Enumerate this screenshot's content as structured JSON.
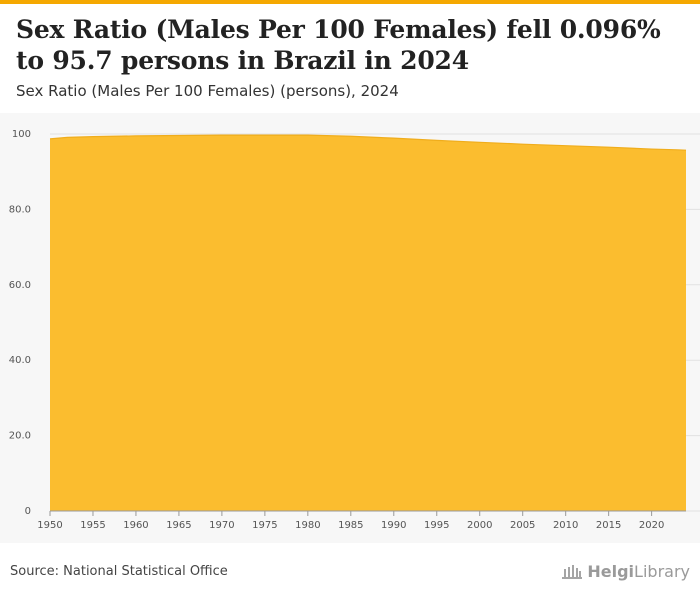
{
  "header": {
    "title": "Sex Ratio (Males Per 100 Females) fell 0.096% to 95.7 persons in Brazil in 2024",
    "subtitle": "Sex Ratio (Males Per 100 Females) (persons), 2024"
  },
  "footer": {
    "source": "Source: National Statistical Office",
    "logo_text_bold": "Helgi",
    "logo_text": "Library"
  },
  "colors": {
    "area_fill": "#fbbd2f",
    "area_stroke": "#f0ad1c",
    "accent": "#f5a800"
  },
  "chart_data": {
    "type": "area",
    "title": "Sex Ratio (Males Per 100 Females) (persons), 2024",
    "xlabel": "",
    "ylabel": "",
    "xlim": [
      1950,
      2024
    ],
    "ylim": [
      0,
      100
    ],
    "x_ticks": [
      "1950",
      "1955",
      "1960",
      "1965",
      "1970",
      "1975",
      "1980",
      "1985",
      "1990",
      "1995",
      "2000",
      "2005",
      "2010",
      "2015",
      "2020"
    ],
    "y_ticks": [
      "0",
      "20.0",
      "40.0",
      "60.0",
      "80.0",
      "100"
    ],
    "grid": true,
    "series": [
      {
        "name": "Sex Ratio (Males Per 100 Females)",
        "x": [
          1950,
          1952,
          1955,
          1960,
          1965,
          1970,
          1975,
          1980,
          1985,
          1990,
          1995,
          2000,
          2005,
          2010,
          2015,
          2020,
          2023,
          2024
        ],
        "values": [
          98.7,
          99.1,
          99.3,
          99.5,
          99.6,
          99.7,
          99.7,
          99.7,
          99.4,
          98.9,
          98.3,
          97.8,
          97.3,
          96.9,
          96.5,
          96.0,
          95.8,
          95.7
        ]
      }
    ]
  }
}
